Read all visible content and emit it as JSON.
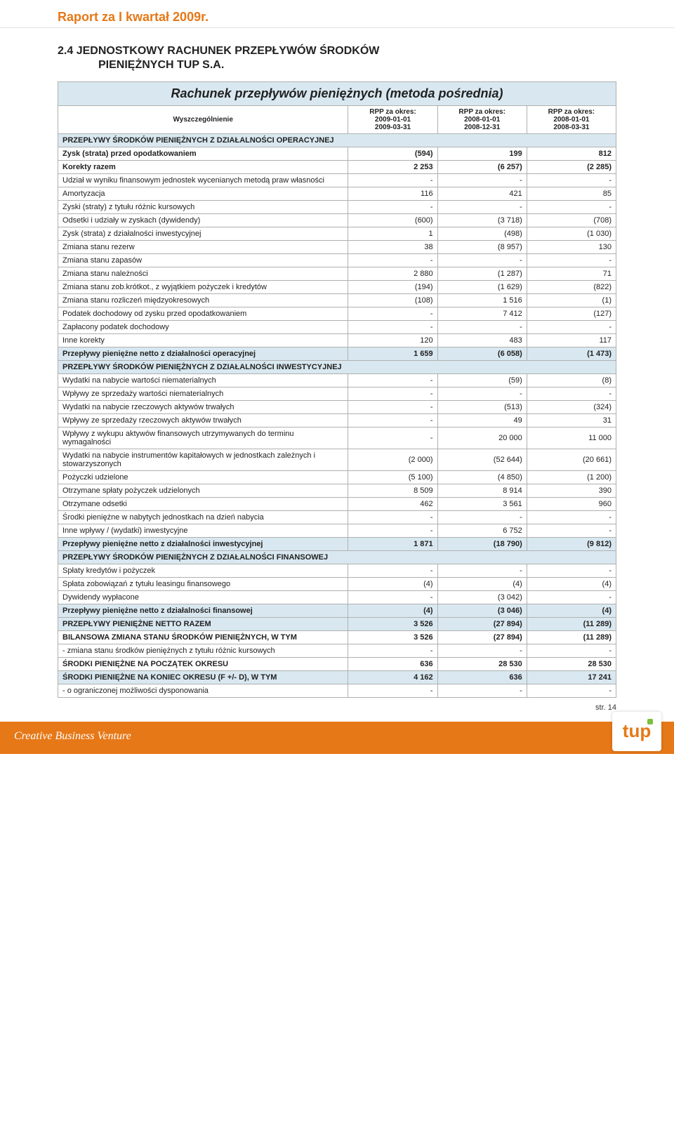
{
  "header": {
    "report_title": "Raport za I kwartał 2009r."
  },
  "section": {
    "num_and_line1": "2.4   JEDNOSTKOWY RACHUNEK PRZEPŁYWÓW ŚRODKÓW",
    "line2": "PIENIĘŻNYCH TUP S.A."
  },
  "table": {
    "main_title": "Rachunek przepływów pieniężnych (metoda pośrednia)",
    "head": {
      "label": "Wyszczególnienie",
      "col1_top": "RPP za okres:",
      "col1_a": "2009-01-01",
      "col1_b": "2009-03-31",
      "col2_top": "RPP za okres:",
      "col2_a": "2008-01-01",
      "col2_b": "2008-12-31",
      "col3_top": "RPP za okres:",
      "col3_a": "2008-01-01",
      "col3_b": "2008-03-31"
    },
    "sections": {
      "op": "PRZEPŁYWY ŚRODKÓW PIENIĘŻNYCH Z DZIAŁALNOŚCI OPERACYJNEJ",
      "inv": "PRZEPŁYWY ŚRODKÓW PIENIĘŻNYCH Z DZIAŁALNOŚCI INWESTYCYJNEJ",
      "fin": "PRZEPŁYWY ŚRODKÓW PIENIĘŻNYCH Z DZIAŁALNOŚCI FINANSOWEJ"
    },
    "rows": {
      "r1": {
        "l": "Zysk (strata) przed opodatkowaniem",
        "a": "(594)",
        "b": "199",
        "c": "812",
        "bold": true
      },
      "r2": {
        "l": "Korekty razem",
        "a": "2 253",
        "b": "(6 257)",
        "c": "(2 285)",
        "bold": true
      },
      "r3": {
        "l": "Udział w wyniku finansowym jednostek wycenianych metodą praw własności",
        "a": "-",
        "b": "-",
        "c": "-"
      },
      "r4": {
        "l": "Amortyzacja",
        "a": "116",
        "b": "421",
        "c": "85"
      },
      "r5": {
        "l": "Zyski (straty) z tytułu różnic kursowych",
        "a": "-",
        "b": "-",
        "c": "-"
      },
      "r6": {
        "l": "Odsetki i udziały w zyskach (dywidendy)",
        "a": "(600)",
        "b": "(3 718)",
        "c": "(708)"
      },
      "r7": {
        "l": "Zysk (strata) z działalności inwestycyjnej",
        "a": "1",
        "b": "(498)",
        "c": "(1 030)"
      },
      "r8": {
        "l": "Zmiana stanu rezerw",
        "a": "38",
        "b": "(8 957)",
        "c": "130"
      },
      "r9": {
        "l": "Zmiana stanu zapasów",
        "a": "-",
        "b": "-",
        "c": "-"
      },
      "r10": {
        "l": "Zmiana stanu należności",
        "a": "2 880",
        "b": "(1 287)",
        "c": "71"
      },
      "r11": {
        "l": "Zmiana stanu zob.krótkot., z wyjątkiem pożyczek i kredytów",
        "a": "(194)",
        "b": "(1 629)",
        "c": "(822)"
      },
      "r12": {
        "l": "Zmiana stanu rozliczeń międzyokresowych",
        "a": "(108)",
        "b": "1 516",
        "c": "(1)"
      },
      "r13": {
        "l": "Podatek dochodowy od zysku przed opodatkowaniem",
        "a": "-",
        "b": "7 412",
        "c": "(127)"
      },
      "r14": {
        "l": "Zapłacony podatek dochodowy",
        "a": "-",
        "b": "-",
        "c": "-"
      },
      "r15": {
        "l": "Inne korekty",
        "a": "120",
        "b": "483",
        "c": "117"
      },
      "r16": {
        "l": "Przepływy pieniężne netto z działalności operacyjnej",
        "a": "1 659",
        "b": "(6 058)",
        "c": "(1 473)",
        "bold": true,
        "section": true
      },
      "r17": {
        "l": "Wydatki na nabycie wartości niematerialnych",
        "a": "-",
        "b": "(59)",
        "c": "(8)"
      },
      "r18": {
        "l": "Wpływy ze sprzedaży wartości niematerialnych",
        "a": "-",
        "b": "-",
        "c": "-"
      },
      "r19": {
        "l": "Wydatki na nabycie rzeczowych aktywów trwałych",
        "a": "-",
        "b": "(513)",
        "c": "(324)"
      },
      "r20": {
        "l": "Wpływy ze sprzedaży rzeczowych aktywów trwałych",
        "a": "-",
        "b": "49",
        "c": "31"
      },
      "r21": {
        "l": "Wpływy z wykupu aktywów finansowych utrzymywanych do terminu wymagalności",
        "a": "-",
        "b": "20 000",
        "c": "11 000"
      },
      "r22": {
        "l": "Wydatki na nabycie instrumentów kapitałowych w jednostkach zależnych i stowarzyszonych",
        "a": "(2 000)",
        "b": "(52 644)",
        "c": "(20 661)"
      },
      "r23": {
        "l": "Pożyczki udzielone",
        "a": "(5 100)",
        "b": "(4 850)",
        "c": "(1 200)"
      },
      "r24": {
        "l": "Otrzymane spłaty pożyczek udzielonych",
        "a": "8 509",
        "b": "8 914",
        "c": "390"
      },
      "r25": {
        "l": "Otrzymane odsetki",
        "a": "462",
        "b": "3 561",
        "c": "960"
      },
      "r26": {
        "l": "Środki pieniężne w nabytych jednostkach na dzień nabycia",
        "a": "-",
        "b": "-",
        "c": "-"
      },
      "r27": {
        "l": "Inne wpływy / (wydatki)  inwestycyjne",
        "a": "-",
        "b": "6 752",
        "c": "-"
      },
      "r28": {
        "l": "Przepływy pieniężne netto z działalności inwestycyjnej",
        "a": "1 871",
        "b": "(18 790)",
        "c": "(9 812)",
        "bold": true,
        "section": true
      },
      "r29": {
        "l": "Spłaty kredytów i pożyczek",
        "a": "-",
        "b": "-",
        "c": "-"
      },
      "r30": {
        "l": "Spłata zobowiązań z tytułu leasingu finansowego",
        "a": "(4)",
        "b": "(4)",
        "c": "(4)"
      },
      "r31": {
        "l": "Dywidendy wypłacone",
        "a": "-",
        "b": "(3 042)",
        "c": "-"
      },
      "r32": {
        "l": "Przepływy pieniężne netto z działalności finansowej",
        "a": "(4)",
        "b": "(3 046)",
        "c": "(4)",
        "bold": true,
        "section": true
      },
      "r33": {
        "l": "PRZEPŁYWY PIENIĘŻNE NETTO RAZEM",
        "a": "3 526",
        "b": "(27 894)",
        "c": "(11 289)",
        "bold": true,
        "section": true
      },
      "r34": {
        "l": "BILANSOWA ZMIANA STANU ŚRODKÓW PIENIĘŻNYCH, W TYM",
        "a": "3 526",
        "b": "(27 894)",
        "c": "(11 289)",
        "bold": true
      },
      "r35": {
        "l": "- zmiana stanu środków pieniężnych z tytułu różnic kursowych",
        "a": "-",
        "b": "-",
        "c": "-"
      },
      "r36": {
        "l": "ŚRODKI PIENIĘŻNE NA POCZĄTEK OKRESU",
        "a": "636",
        "b": "28 530",
        "c": "28 530",
        "bold": true
      },
      "r37": {
        "l": "ŚRODKI PIENIĘŻNE NA KONIEC OKRESU (F +/- D), W TYM",
        "a": "4 162",
        "b": "636",
        "c": "17 241",
        "bold": true,
        "section": true
      },
      "r38": {
        "l": "- o ograniczonej możliwości dysponowania",
        "a": "-",
        "b": "-",
        "c": "-"
      }
    }
  },
  "footer": {
    "page": "str. 14",
    "slogan": "Creative Business Venture",
    "logo_text": "tup"
  },
  "colors": {
    "accent": "#e67817",
    "section_bg": "#d9e8f0",
    "border": "#b0b0b0",
    "green": "#7bbf3a"
  }
}
